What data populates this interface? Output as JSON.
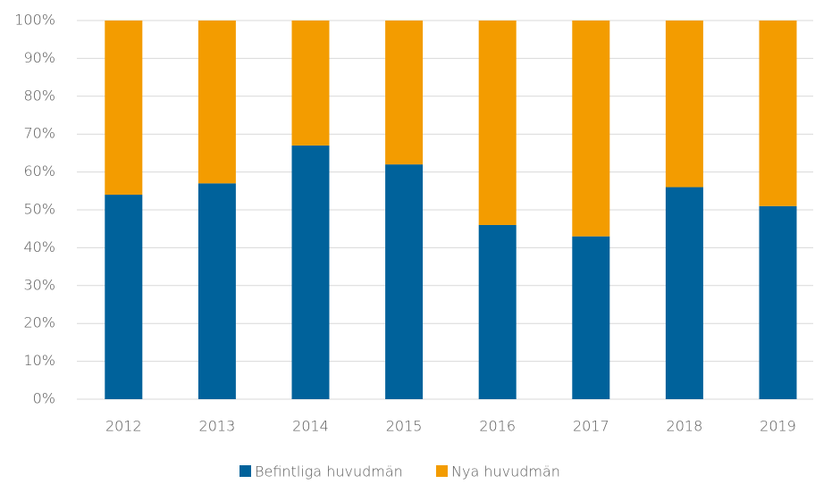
{
  "chart_data": {
    "type": "stacked_bar",
    "categories": [
      "2012",
      "2013",
      "2014",
      "2015",
      "2016",
      "2017",
      "2018",
      "2019"
    ],
    "series": [
      {
        "name": "Befintliga huvudmän",
        "color": "#00629b",
        "values": [
          54,
          57,
          67,
          62,
          46,
          43,
          56,
          51
        ]
      },
      {
        "name": "Nya huvudmän",
        "color": "#f39c00",
        "values": [
          46,
          43,
          33,
          38,
          54,
          57,
          44,
          49
        ]
      }
    ],
    "ylim": [
      0,
      100
    ],
    "yticks": [
      {
        "value": 0,
        "label": "0%"
      },
      {
        "value": 10,
        "label": "10%"
      },
      {
        "value": 20,
        "label": "20%"
      },
      {
        "value": 30,
        "label": "30%"
      },
      {
        "value": 40,
        "label": "40%"
      },
      {
        "value": 50,
        "label": "50%"
      },
      {
        "value": 60,
        "label": "60%"
      },
      {
        "value": 70,
        "label": "70%"
      },
      {
        "value": 80,
        "label": "80%"
      },
      {
        "value": 90,
        "label": "90%"
      },
      {
        "value": 100,
        "label": "100%"
      }
    ],
    "grid": true,
    "legend": "bottom"
  }
}
